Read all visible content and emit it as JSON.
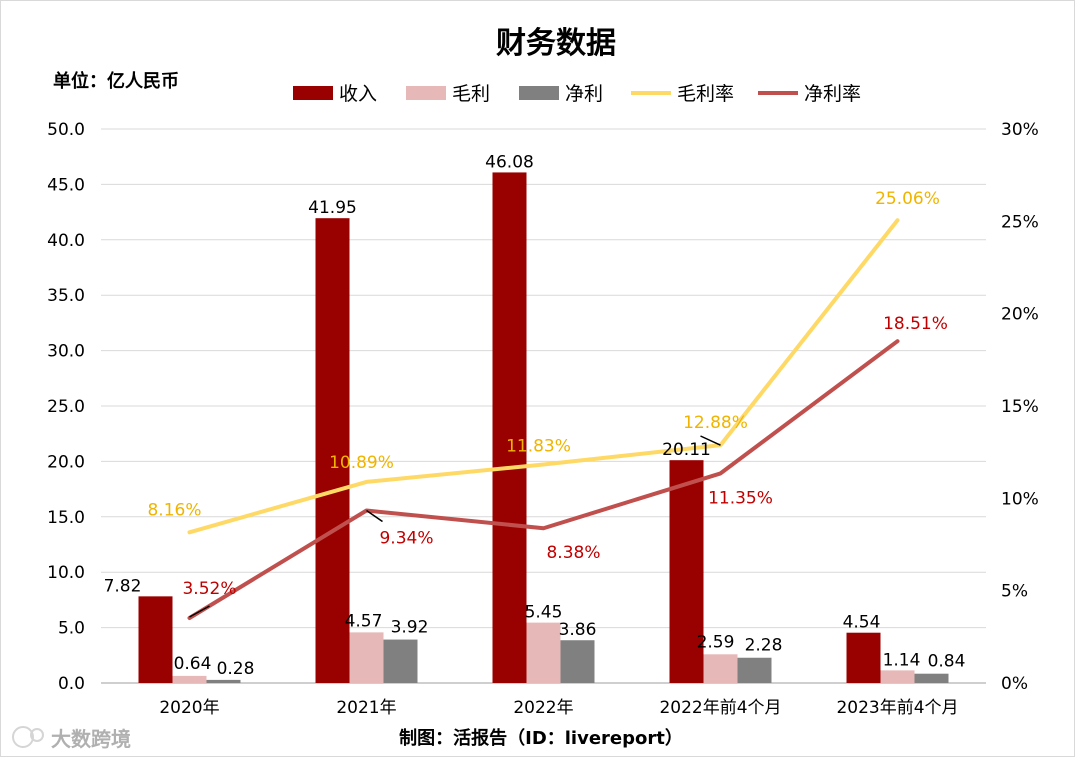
{
  "chart_data": {
    "type": "bar",
    "title": "财务数据",
    "unit_label": "单位：亿人民币",
    "caption": "制图：活报告（ID：livereport）",
    "watermark": "大数跨境",
    "categories": [
      "2020年",
      "2021年",
      "2022年",
      "2022年前4个月",
      "2023年前4个月"
    ],
    "y_left": {
      "range": [
        0,
        50
      ],
      "ticks": [
        "0.0",
        "5.0",
        "10.0",
        "15.0",
        "20.0",
        "25.0",
        "30.0",
        "35.0",
        "40.0",
        "45.0",
        "50.0"
      ]
    },
    "y_right": {
      "range": [
        0,
        30
      ],
      "ticks": [
        "0%",
        "5%",
        "10%",
        "15%",
        "20%",
        "25%",
        "30%"
      ]
    },
    "grid": true,
    "legend_position": "top",
    "series": [
      {
        "name": "收入",
        "type": "bar",
        "axis": "left",
        "color": "#990000",
        "values": [
          7.82,
          41.95,
          46.08,
          20.11,
          4.54
        ],
        "labels": [
          "7.82",
          "41.95",
          "46.08",
          "20.11",
          "4.54"
        ]
      },
      {
        "name": "毛利",
        "type": "bar",
        "axis": "left",
        "color": "#e6b8b7",
        "values": [
          0.64,
          4.57,
          5.45,
          2.59,
          1.14
        ],
        "labels": [
          "0.64",
          "4.57",
          "5.45",
          "2.59",
          "1.14"
        ]
      },
      {
        "name": "净利",
        "type": "bar",
        "axis": "left",
        "color": "#808080",
        "values": [
          0.28,
          3.92,
          3.86,
          2.28,
          0.84
        ],
        "labels": [
          "0.28",
          "3.92",
          "3.86",
          "2.28",
          "0.84"
        ]
      },
      {
        "name": "毛利率",
        "type": "line",
        "axis": "right",
        "color": "#ffd966",
        "label_color": "#f0b400",
        "values": [
          8.16,
          10.89,
          11.83,
          12.88,
          25.06
        ],
        "labels": [
          "8.16%",
          "10.89%",
          "11.83%",
          "12.88%",
          "25.06%"
        ]
      },
      {
        "name": "净利率",
        "type": "line",
        "axis": "right",
        "color": "#c0504d",
        "label_color": "#c00000",
        "values": [
          3.52,
          9.34,
          8.38,
          11.35,
          18.51
        ],
        "labels": [
          "3.52%",
          "9.34%",
          "8.38%",
          "11.35%",
          "18.51%"
        ]
      }
    ]
  }
}
